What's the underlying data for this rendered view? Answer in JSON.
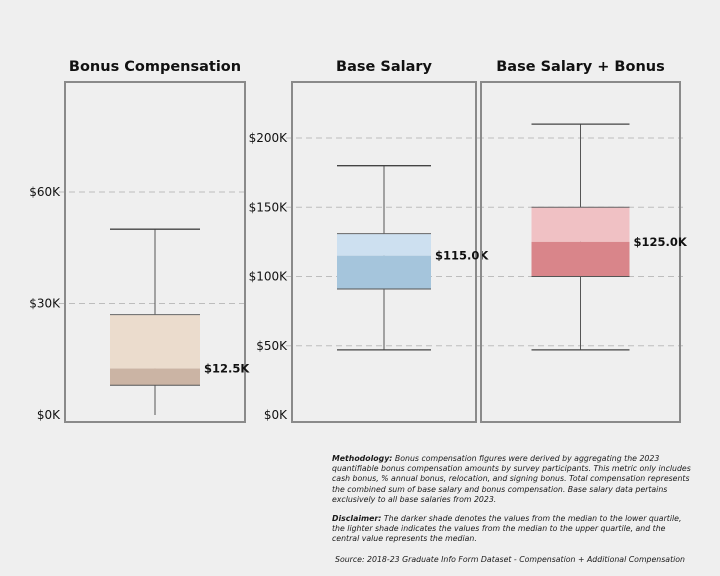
{
  "chart_data": [
    {
      "type": "box",
      "title": "Bonus Compensation",
      "yticks": [
        "$0K",
        "$30K",
        "$60K"
      ],
      "ytick_values": [
        0,
        30,
        60
      ],
      "ylim": [
        0,
        60
      ],
      "unit": "K",
      "box": {
        "min": 0,
        "q1": 8,
        "median": 12.5,
        "q3": 27,
        "max": 50
      },
      "median_label": "$12.5K",
      "colors": {
        "lower": "#cbb4a4",
        "upper": "#ebdccd"
      }
    },
    {
      "type": "box",
      "title": "Base Salary",
      "yticks": [
        "$0K",
        "$50K",
        "$100K",
        "$150K",
        "$200K"
      ],
      "ytick_values": [
        0,
        50,
        100,
        150,
        200
      ],
      "ylim": [
        0,
        200
      ],
      "unit": "K",
      "box": {
        "min": 47,
        "q1": 91,
        "median": 115,
        "q3": 131,
        "max": 180
      },
      "median_label": "$115.0K",
      "colors": {
        "lower": "#a5c5dc",
        "upper": "#cde0f0"
      }
    },
    {
      "type": "box",
      "title": "Base Salary + Bonus",
      "yticks": [],
      "ytick_values": [
        0,
        50,
        100,
        150,
        200
      ],
      "ylim": [
        0,
        200
      ],
      "unit": "K",
      "box": {
        "min": 47,
        "q1": 100,
        "median": 125,
        "q3": 150,
        "max": 210
      },
      "median_label": "$125.0K",
      "colors": {
        "lower": "#d9858a",
        "upper": "#f0c1c4"
      }
    }
  ],
  "notes": {
    "methodology_label": "Methodology:",
    "methodology_text": "Bonus compensation figures were derived by aggregating the 2023 quantifiable bonus compensation amounts by survey participants. This metric only includes cash bonus, % annual bonus, relocation, and signing bonus. Total compensation represents the combined sum of base salary and bonus compensation. Base salary data pertains exclusively to all base salaries from 2023.",
    "disclaimer_label": "Disclaimer:",
    "disclaimer_text": "The darker shade denotes the values from the median to the lower quartile, the lighter shade indicates the values from the median to the upper quartile, and the central value represents the median.",
    "source": "Source: 2018-23 Graduate Info Form Dataset - Compensation + Additional Compensation"
  }
}
